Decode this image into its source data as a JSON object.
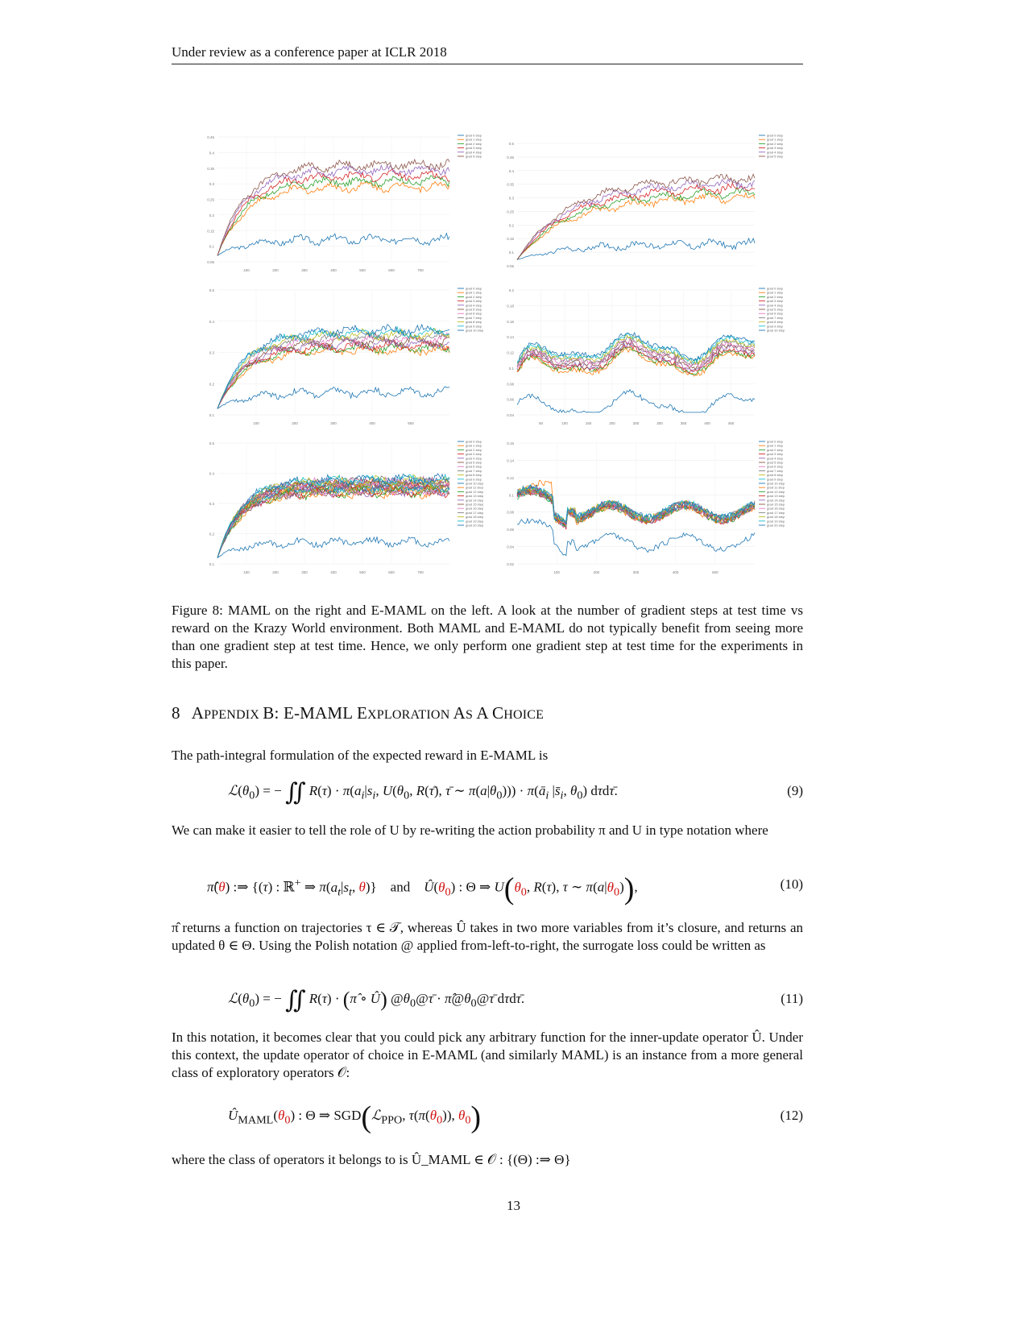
{
  "header": "Under review as a conference paper at ICLR 2018",
  "figure": {
    "panels": [
      {
        "id": "p1",
        "legend": [
          "grad 0 step",
          "grad 1 step",
          "grad 2 step",
          "grad 3 step",
          "grad 4 step",
          "grad 5 step"
        ],
        "yticks": [
          "0.45",
          "0.4",
          "0.35",
          "0.3",
          "0.25",
          "0.2",
          "0.15",
          "0.1",
          "0.05"
        ],
        "xticks": [
          "100",
          "200",
          "300",
          "400",
          "500",
          "600",
          "700"
        ]
      },
      {
        "id": "p2",
        "legend": [
          "grad 0 step",
          "grad 1 step",
          "grad 2 step",
          "grad 3 step",
          "grad 4 step",
          "grad 5 step"
        ],
        "yticks": [
          "0.5",
          "0.45",
          "0.4",
          "0.35",
          "0.3",
          "0.25",
          "0.2",
          "0.15",
          "0.1",
          "0.05"
        ],
        "xticks": []
      },
      {
        "id": "p3",
        "legend": [
          "grad 0 step",
          "grad 1 step",
          "grad 2 step",
          "grad 3 step",
          "grad 4 step",
          "grad 5 step",
          "grad 6 step",
          "grad 7 step",
          "grad 8 step",
          "grad 9 step",
          "grad 10 step"
        ],
        "yticks": [
          "0.5",
          "0.4",
          "0.3",
          "0.2",
          "0.1"
        ],
        "xticks": [
          "100",
          "200",
          "300",
          "400",
          "500"
        ]
      },
      {
        "id": "p4",
        "legend": [
          "grad 0 step",
          "grad 1 step",
          "grad 2 step",
          "grad 3 step",
          "grad 4 step",
          "grad 5 step",
          "grad 6 step",
          "grad 7 step",
          "grad 8 step",
          "grad 9 step",
          "grad 10 step"
        ],
        "yticks": [
          "0.2",
          "0.18",
          "0.16",
          "0.14",
          "0.12",
          "0.1",
          "0.08",
          "0.06",
          "0.04"
        ],
        "xticks": [
          "50",
          "100",
          "150",
          "200",
          "250",
          "300",
          "350",
          "400",
          "450"
        ]
      },
      {
        "id": "p5",
        "legend": [
          "grad 0 step",
          "grad 1 step",
          "grad 2 step",
          "grad 3 step",
          "grad 4 step",
          "grad 5 step",
          "grad 6 step",
          "grad 7 step",
          "grad 8 step",
          "grad 9 step",
          "grad 10 step",
          "grad 11 step",
          "grad 12 step",
          "grad 13 step",
          "grad 14 step",
          "grad 15 step",
          "grad 16 step",
          "grad 17 step",
          "grad 18 step",
          "grad 19 step",
          "grad 20 step"
        ],
        "yticks": [
          "0.5",
          "0.4",
          "0.3",
          "0.2",
          "0.1"
        ],
        "xticks": [
          "100",
          "200",
          "300",
          "400",
          "500",
          "600",
          "700"
        ]
      },
      {
        "id": "p6",
        "legend": [
          "grad 0 step",
          "grad 1 step",
          "grad 2 step",
          "grad 3 step",
          "grad 4 step",
          "grad 5 step",
          "grad 6 step",
          "grad 7 step",
          "grad 8 step",
          "grad 9 step",
          "grad 10 step",
          "grad 11 step",
          "grad 12 step",
          "grad 13 step",
          "grad 14 step",
          "grad 15 step",
          "grad 16 step",
          "grad 17 step",
          "grad 18 step",
          "grad 19 step",
          "grad 20 step"
        ],
        "yticks": [
          "0.16",
          "0.14",
          "0.12",
          "0.1",
          "0.08",
          "0.06",
          "0.04",
          "0.02"
        ],
        "xticks": [
          "100",
          "200",
          "300",
          "400",
          "500"
        ]
      }
    ],
    "colors": [
      "#1f77b4",
      "#ff7f0e",
      "#2ca02c",
      "#d62728",
      "#9467bd",
      "#8c564b",
      "#e377c2",
      "#7f7f7f",
      "#bcbd22",
      "#17becf"
    ]
  },
  "caption": "Figure 8: MAML on the right and E-MAML on the left. A look at the number of gradient steps at test time vs reward on the Krazy World environment. Both MAML and E-MAML do not typically benefit from seeing more than one gradient step at test time. Hence, we only perform one gradient step at test time for the experiments in this paper.",
  "section": {
    "number": "8",
    "title_parts": [
      "A",
      "PPENDIX ",
      "B: E-MAML E",
      "XPLORATION ",
      "A",
      "S ",
      "A C",
      "HOICE"
    ]
  },
  "paragraphs": {
    "p1": "The path-integral formulation of the expected reward in E-MAML is",
    "p2": "We can make it easier to tell the role of U by re-writing the action probability π and U in type notation where",
    "p3": "π̂ returns a function on trajectories τ ∈ 𝒯, whereas Û takes in two more variables from it’s closure, and returns an updated θ ∈ Θ. Using the Polish notation @ applied from-left-to-right, the surrogate loss could be written as",
    "p4": "In this notation, it becomes clear that you could pick any arbitrary function for the inner-update operator Û. Under this context, the update operator of choice in E-MAML (and similarly MAML) is an instance from a more general class of exploratory operators 𝒪:",
    "p5": "where the class of operators it belongs to is Û_MAML ∈ 𝒪 : {(Θ) :⇒ Θ}"
  },
  "equations": {
    "e9_num": "(9)",
    "e10_num": "(10)",
    "e11_num": "(11)",
    "e12_num": "(12)",
    "e10_and": "and"
  },
  "page_number": "13"
}
